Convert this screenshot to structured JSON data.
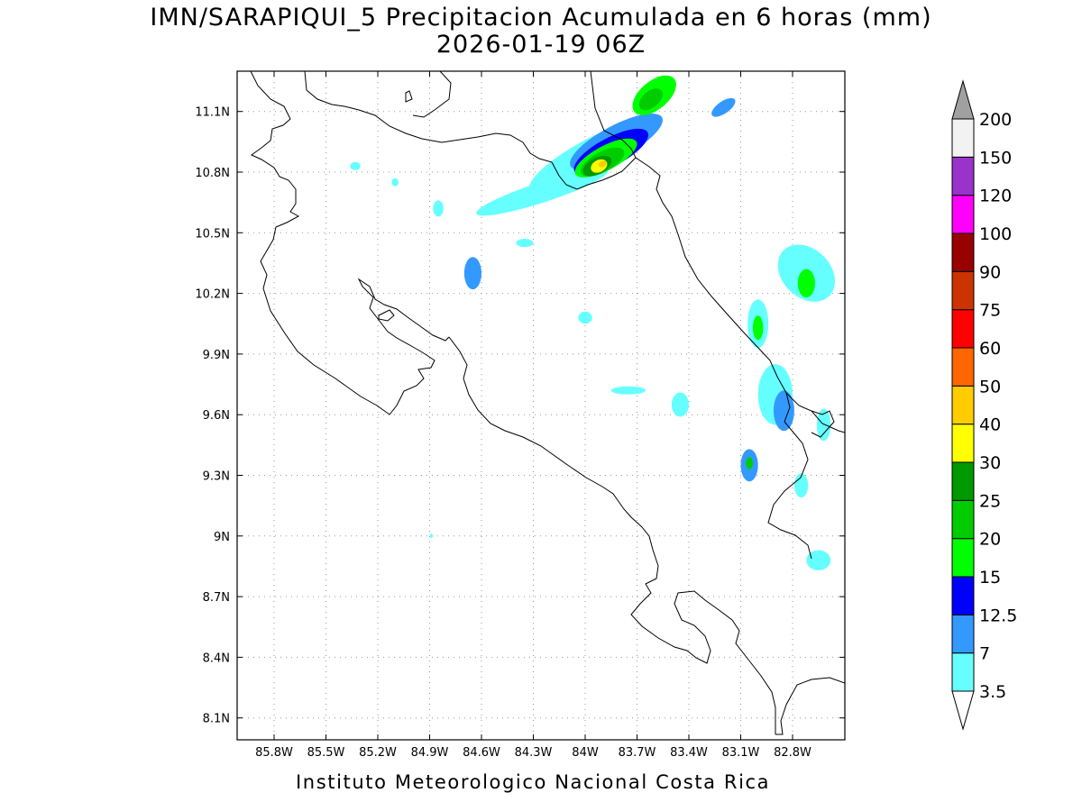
{
  "title": {
    "line1": "IMN/SARAPIQUI_5 Precipitacion Acumulada en 6 horas (mm)",
    "line2": "2026-01-19 06Z"
  },
  "footer": "Instituto Meteorologico Nacional Costa Rica",
  "map": {
    "lon_range": [
      -86.0,
      -82.57
    ],
    "lat_range": [
      8.0,
      11.3
    ],
    "lat_ticks": [
      {
        "value": 11.1,
        "label": "11.1N"
      },
      {
        "value": 10.8,
        "label": "10.8N"
      },
      {
        "value": 10.5,
        "label": "10.5N"
      },
      {
        "value": 10.2,
        "label": "10.2N"
      },
      {
        "value": 9.9,
        "label": "9.9N"
      },
      {
        "value": 9.6,
        "label": "9.6N"
      },
      {
        "value": 9.3,
        "label": "9.3N"
      },
      {
        "value": 9.0,
        "label": "9N"
      },
      {
        "value": 8.7,
        "label": "8.7N"
      },
      {
        "value": 8.4,
        "label": "8.4N"
      },
      {
        "value": 8.1,
        "label": "8.1N"
      }
    ],
    "lon_ticks": [
      {
        "value": -85.8,
        "label": "85.8W"
      },
      {
        "value": -85.5,
        "label": "85.5W"
      },
      {
        "value": -85.2,
        "label": "85.2W"
      },
      {
        "value": -84.9,
        "label": "84.9W"
      },
      {
        "value": -84.6,
        "label": "84.6W"
      },
      {
        "value": -84.3,
        "label": "84.3W"
      },
      {
        "value": -84.0,
        "label": "84W"
      },
      {
        "value": -83.7,
        "label": "83.7W"
      },
      {
        "value": -83.4,
        "label": "83.4W"
      },
      {
        "value": -83.1,
        "label": "83.1W"
      },
      {
        "value": -82.8,
        "label": "82.8W"
      }
    ],
    "grid": true
  },
  "colorbar": {
    "levels": [
      "3.5",
      "7",
      "12.5",
      "15",
      "20",
      "25",
      "30",
      "40",
      "50",
      "60",
      "75",
      "90",
      "100",
      "120",
      "150",
      "200"
    ],
    "colors": [
      "#66ffff",
      "#3399ff",
      "#0000ff",
      "#00ff00",
      "#00cc00",
      "#009900",
      "#ffff00",
      "#ffcc00",
      "#ff6600",
      "#ff0000",
      "#cc3300",
      "#990000",
      "#ff00ff",
      "#9933cc",
      "#f2f2f2"
    ],
    "min_arrow_color": "#ffffff",
    "max_arrow_color": "#a0a0a0"
  },
  "precip_cells": [
    {
      "lon": -83.95,
      "lat": 10.88,
      "lon_r": 0.42,
      "lat_r": 0.09,
      "rot": -28,
      "mm": 5
    },
    {
      "lon": -84.25,
      "lat": 10.7,
      "lon_r": 0.4,
      "lat_r": 0.05,
      "rot": -18,
      "mm": 5
    },
    {
      "lon": -83.82,
      "lat": 10.95,
      "lon_r": 0.3,
      "lat_r": 0.08,
      "rot": -28,
      "mm": 10
    },
    {
      "lon": -83.85,
      "lat": 10.9,
      "lon_r": 0.24,
      "lat_r": 0.07,
      "rot": -28,
      "mm": 14
    },
    {
      "lon": -83.88,
      "lat": 10.87,
      "lon_r": 0.2,
      "lat_r": 0.06,
      "rot": -28,
      "mm": 17
    },
    {
      "lon": -83.9,
      "lat": 10.85,
      "lon_r": 0.14,
      "lat_r": 0.05,
      "rot": -28,
      "mm": 22
    },
    {
      "lon": -83.93,
      "lat": 10.83,
      "lon_r": 0.09,
      "lat_r": 0.04,
      "rot": -28,
      "mm": 27
    },
    {
      "lon": -83.92,
      "lat": 10.83,
      "lon_r": 0.05,
      "lat_r": 0.03,
      "rot": -28,
      "mm": 35
    },
    {
      "lon": -83.9,
      "lat": 10.84,
      "lon_r": 0.025,
      "lat_r": 0.015,
      "rot": -28,
      "mm": 45
    },
    {
      "lon": -83.6,
      "lat": 11.18,
      "lon_r": 0.15,
      "lat_r": 0.07,
      "rot": -40,
      "mm": 17
    },
    {
      "lon": -83.62,
      "lat": 11.16,
      "lon_r": 0.08,
      "lat_r": 0.04,
      "rot": -40,
      "mm": 22
    },
    {
      "lon": -83.2,
      "lat": 11.12,
      "lon_r": 0.08,
      "lat_r": 0.03,
      "rot": -35,
      "mm": 10
    },
    {
      "lon": -84.65,
      "lat": 10.3,
      "lon_r": 0.05,
      "lat_r": 0.08,
      "rot": 0,
      "mm": 10
    },
    {
      "lon": -84.85,
      "lat": 10.62,
      "lon_r": 0.03,
      "lat_r": 0.04,
      "rot": 0,
      "mm": 5
    },
    {
      "lon": -85.1,
      "lat": 10.75,
      "lon_r": 0.02,
      "lat_r": 0.02,
      "rot": 0,
      "mm": 5
    },
    {
      "lon": -85.33,
      "lat": 10.83,
      "lon_r": 0.03,
      "lat_r": 0.02,
      "rot": 0,
      "mm": 5
    },
    {
      "lon": -84.35,
      "lat": 10.45,
      "lon_r": 0.05,
      "lat_r": 0.02,
      "rot": 0,
      "mm": 5
    },
    {
      "lon": -84.0,
      "lat": 10.08,
      "lon_r": 0.04,
      "lat_r": 0.03,
      "rot": 0,
      "mm": 5
    },
    {
      "lon": -83.75,
      "lat": 9.72,
      "lon_r": 0.1,
      "lat_r": 0.02,
      "rot": 0,
      "mm": 5
    },
    {
      "lon": -83.45,
      "lat": 9.65,
      "lon_r": 0.05,
      "lat_r": 0.06,
      "rot": 0,
      "mm": 5
    },
    {
      "lon": -83.0,
      "lat": 10.05,
      "lon_r": 0.06,
      "lat_r": 0.12,
      "rot": 0,
      "mm": 5
    },
    {
      "lon": -83.0,
      "lat": 10.03,
      "lon_r": 0.03,
      "lat_r": 0.06,
      "rot": 0,
      "mm": 17
    },
    {
      "lon": -82.72,
      "lat": 10.3,
      "lon_r": 0.14,
      "lat_r": 0.16,
      "rot": -45,
      "mm": 5
    },
    {
      "lon": -82.72,
      "lat": 10.25,
      "lon_r": 0.05,
      "lat_r": 0.07,
      "rot": 0,
      "mm": 17
    },
    {
      "lon": -82.9,
      "lat": 9.7,
      "lon_r": 0.1,
      "lat_r": 0.15,
      "rot": 0,
      "mm": 5
    },
    {
      "lon": -82.85,
      "lat": 9.62,
      "lon_r": 0.06,
      "lat_r": 0.1,
      "rot": 0,
      "mm": 10
    },
    {
      "lon": -83.05,
      "lat": 9.35,
      "lon_r": 0.05,
      "lat_r": 0.08,
      "rot": 0,
      "mm": 10
    },
    {
      "lon": -83.05,
      "lat": 9.36,
      "lon_r": 0.02,
      "lat_r": 0.03,
      "rot": 0,
      "mm": 22
    },
    {
      "lon": -82.75,
      "lat": 9.25,
      "lon_r": 0.04,
      "lat_r": 0.06,
      "rot": 0,
      "mm": 5
    },
    {
      "lon": -82.65,
      "lat": 8.88,
      "lon_r": 0.07,
      "lat_r": 0.05,
      "rot": 0,
      "mm": 5
    },
    {
      "lon": -82.62,
      "lat": 9.55,
      "lon_r": 0.04,
      "lat_r": 0.08,
      "rot": 0,
      "mm": 5
    },
    {
      "lon": -84.89,
      "lat": 9.0,
      "lon_r": 0.01,
      "lat_r": 0.01,
      "rot": 0,
      "mm": 5
    }
  ]
}
